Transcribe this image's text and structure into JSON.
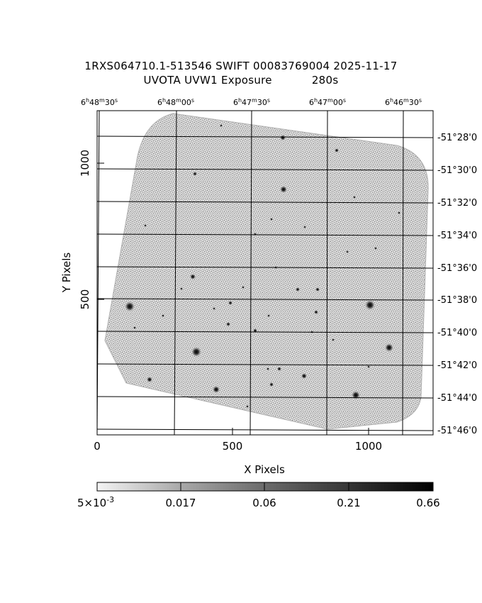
{
  "header": {
    "line1": "1RXS064710.1-513546 SWIFT 00083769004 2025-11-17",
    "line2_left": "UVOTA UVW1 Exposure",
    "line2_right": "280s"
  },
  "axes": {
    "xlabel": "X Pixels",
    "ylabel": "Y Pixels",
    "x_ticks": [
      "0",
      "500",
      "1000"
    ],
    "y_ticks": [
      "500",
      "1000"
    ],
    "ra_ticks": [
      "6h48m30s",
      "6h48m00s",
      "6h47m30s",
      "6h47m00s",
      "6h46m30s"
    ],
    "dec_ticks": [
      "-51°28'0",
      "-51°30'0",
      "-51°32'0",
      "-51°34'0",
      "-51°36'0",
      "-51°38'0",
      "-51°40'0",
      "-51°42'0",
      "-51°44'0",
      "-51°46'0"
    ]
  },
  "colorbar": {
    "base": "5×10",
    "exp": "-3",
    "labels": [
      "0.017",
      "0.06",
      "0.21",
      "0.66"
    ]
  }
}
